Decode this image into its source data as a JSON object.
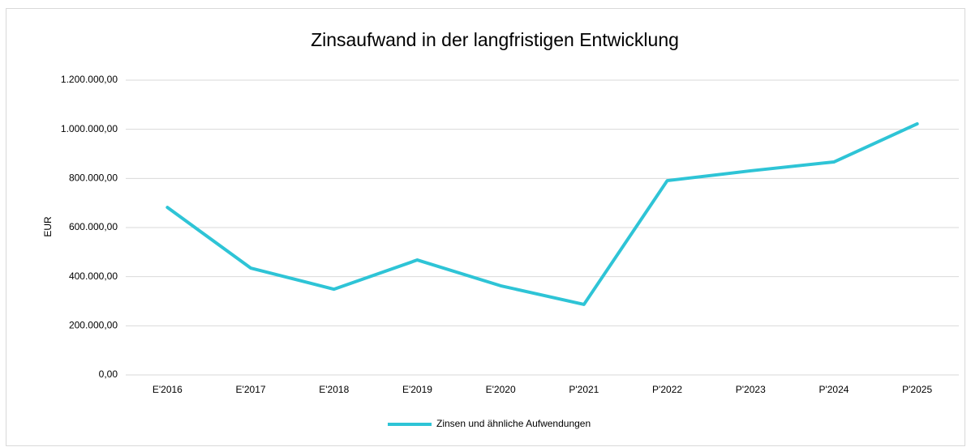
{
  "chart_data": {
    "type": "line",
    "title": "Zinsaufwand in der langfristigen Entwicklung",
    "y_label": "EUR",
    "categories": [
      "E'2016",
      "E'2017",
      "E'2018",
      "E'2019",
      "E'2020",
      "P'2021",
      "P'2022",
      "P'2023",
      "P'2024",
      "P'2025"
    ],
    "series": [
      {
        "name": "Zinsen und ähnliche Aufwendungen",
        "color": "#2ec4d6",
        "values": [
          682000,
          435000,
          349000,
          468000,
          363000,
          287000,
          791000,
          831000,
          867000,
          1022000
        ]
      }
    ],
    "ylim": [
      0,
      1200000
    ],
    "yticks": [
      {
        "value": 0,
        "label": "0,00"
      },
      {
        "value": 200000,
        "label": "200.000,00"
      },
      {
        "value": 400000,
        "label": "400.000,00"
      },
      {
        "value": 600000,
        "label": "600.000,00"
      },
      {
        "value": 800000,
        "label": "800.000,00"
      },
      {
        "value": 1000000,
        "label": "1.000.000,00"
      },
      {
        "value": 1200000,
        "label": "1.200.000,00"
      }
    ],
    "grid": true,
    "legend": "bottom"
  }
}
